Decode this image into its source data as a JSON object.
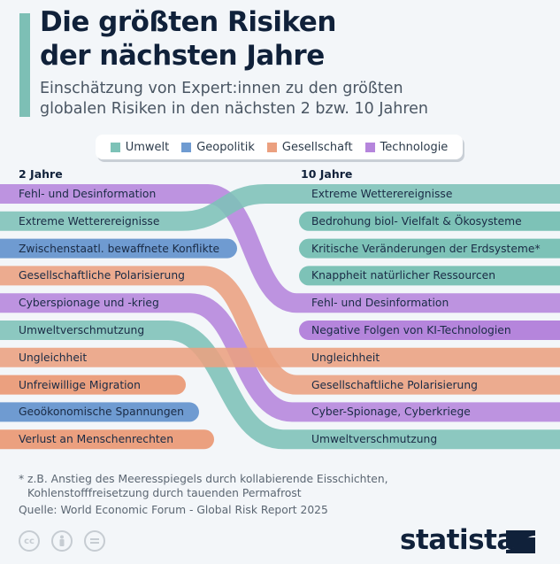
{
  "header": {
    "title_line1": "Die größten Risiken",
    "title_line2": "der nächsten Jahre",
    "subtitle_line1": "Einschätzung von Expert:innen zu den größten",
    "subtitle_line2": "globalen Risiken in den nächsten 2 bzw. 10 Jahren"
  },
  "colors": {
    "Umwelt": "#7dc2b7",
    "Geopolitik": "#6f9bd1",
    "Gesellschaft": "#eba07f",
    "Technologie": "#b585dc",
    "accent": "#7dbfb5",
    "text": "#10213a"
  },
  "legend": [
    {
      "label": "Umwelt",
      "category": "Umwelt"
    },
    {
      "label": "Geopolitik",
      "category": "Geopolitik"
    },
    {
      "label": "Gesellschaft",
      "category": "Gesellschaft"
    },
    {
      "label": "Technologie",
      "category": "Technologie"
    }
  ],
  "chart_data": {
    "type": "slope-ranking",
    "title": "Die größten Risiken der nächsten Jahre",
    "left_header": "2 Jahre",
    "right_header": "10 Jahre",
    "left": [
      {
        "rank": 1,
        "label": "Fehl- und Desinformation",
        "category": "Technologie",
        "rank_10y": 5
      },
      {
        "rank": 2,
        "label": "Extreme Wetterereignisse",
        "category": "Umwelt",
        "rank_10y": 1
      },
      {
        "rank": 3,
        "label": "Zwischenstaatl. bewaffnete Konflikte",
        "category": "Geopolitik",
        "rank_10y": null
      },
      {
        "rank": 4,
        "label": "Gesellschaftliche Polarisierung",
        "category": "Gesellschaft",
        "rank_10y": 8
      },
      {
        "rank": 5,
        "label": "Cyberspionage und -krieg",
        "category": "Technologie",
        "rank_10y": 9
      },
      {
        "rank": 6,
        "label": "Umweltverschmutzung",
        "category": "Umwelt",
        "rank_10y": 10
      },
      {
        "rank": 7,
        "label": "Ungleichheit",
        "category": "Gesellschaft",
        "rank_10y": 7
      },
      {
        "rank": 8,
        "label": "Unfreiwillige Migration",
        "category": "Gesellschaft",
        "rank_10y": null
      },
      {
        "rank": 9,
        "label": "Geoökonomische Spannungen",
        "category": "Geopolitik",
        "rank_10y": null
      },
      {
        "rank": 10,
        "label": "Verlust an Menschenrechten",
        "category": "Gesellschaft",
        "rank_10y": null
      }
    ],
    "right": [
      {
        "rank": 1,
        "label": "Extreme Wetterereignisse",
        "category": "Umwelt",
        "rank_2y": 2
      },
      {
        "rank": 2,
        "label": "Bedrohung biol- Vielfalt & Ökosysteme",
        "category": "Umwelt",
        "rank_2y": null
      },
      {
        "rank": 3,
        "label": "Kritische Veränderungen der Erdsysteme*",
        "category": "Umwelt",
        "rank_2y": null
      },
      {
        "rank": 4,
        "label": "Knappheit natürlicher Ressourcen",
        "category": "Umwelt",
        "rank_2y": null
      },
      {
        "rank": 5,
        "label": "Fehl- und Desinformation",
        "category": "Technologie",
        "rank_2y": 1
      },
      {
        "rank": 6,
        "label": "Negative Folgen von KI-Technologien",
        "category": "Technologie",
        "rank_2y": null
      },
      {
        "rank": 7,
        "label": "Ungleichheit",
        "category": "Gesellschaft",
        "rank_2y": 7
      },
      {
        "rank": 8,
        "label": "Gesellschaftliche Polarisierung",
        "category": "Gesellschaft",
        "rank_2y": 4
      },
      {
        "rank": 9,
        "label": "Cyber-Spionage, Cyberkriege",
        "category": "Technologie",
        "rank_2y": 5
      },
      {
        "rank": 10,
        "label": "Umweltverschmutzung",
        "category": "Umwelt",
        "rank_2y": 6
      }
    ]
  },
  "footer": {
    "note_line1": "* z.B. Anstieg des Meeresspiegels durch kollabierende Eisschichten,",
    "note_line2": "Kohlenstofffreisetzung durch tauenden Permafrost",
    "source": "Quelle: World Economic Forum - Global Risk Report 2025",
    "license_icons": [
      "cc-icon",
      "attribution-icon",
      "no-derivatives-icon"
    ],
    "brand": "statista"
  }
}
